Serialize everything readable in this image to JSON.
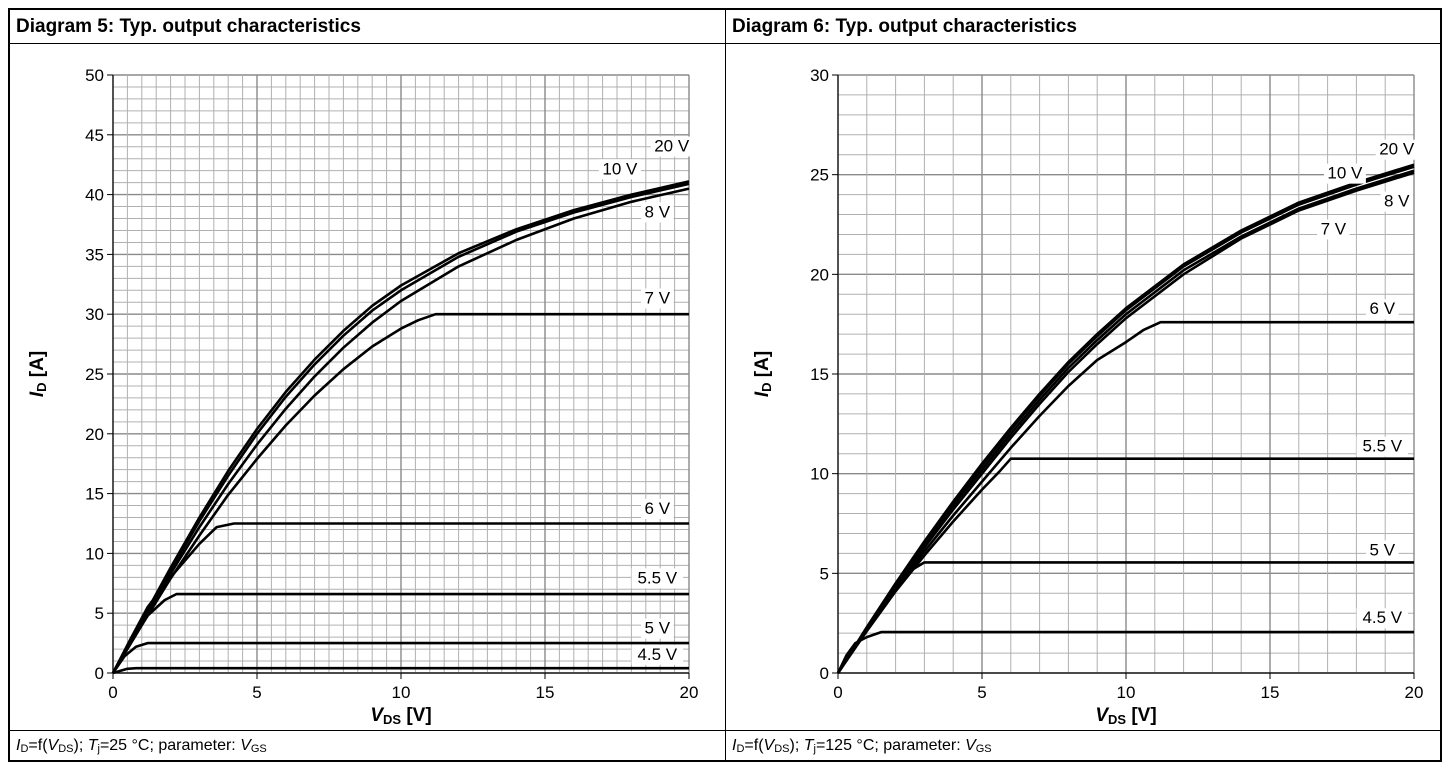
{
  "panels": [
    {
      "title": "Diagram 5: Typ. output characteristics",
      "caption": {
        "lhs": "I",
        "lhs_sub": "D",
        "eq": "=f(",
        "arg": "V",
        "arg_sub": "DS",
        "close": "); ",
        "temp_sym": "T",
        "temp_sub": "j",
        "temp_val": "=25 °C; parameter: ",
        "param": "V",
        "param_sub": "GS"
      }
    },
    {
      "title": "Diagram 6: Typ. output characteristics",
      "caption": {
        "lhs": "I",
        "lhs_sub": "D",
        "eq": "=f(",
        "arg": "V",
        "arg_sub": "DS",
        "close": "); ",
        "temp_sym": "T",
        "temp_sub": "j",
        "temp_val": "=125 °C; parameter: ",
        "param": "V",
        "param_sub": "GS"
      }
    }
  ],
  "chart_data": [
    {
      "type": "line",
      "title": "Diagram 5: Typ. output characteristics",
      "xlabel": {
        "sym": "V",
        "sub": "DS",
        "unit": " [V]"
      },
      "ylabel": {
        "sym": "I",
        "sub": "D",
        "unit": " [A]"
      },
      "xlim": [
        0,
        20
      ],
      "ylim": [
        0,
        50
      ],
      "xticks": [
        0,
        5,
        10,
        15,
        20
      ],
      "yticks": [
        0,
        5,
        10,
        15,
        20,
        25,
        30,
        35,
        40,
        45,
        50
      ],
      "grid": true,
      "series": [
        {
          "name": "20 V",
          "points": [
            [
              0,
              0
            ],
            [
              1,
              4.4
            ],
            [
              2,
              8.8
            ],
            [
              3,
              13
            ],
            [
              4,
              16.9
            ],
            [
              5,
              20.4
            ],
            [
              6,
              23.5
            ],
            [
              7,
              26.2
            ],
            [
              8,
              28.6
            ],
            [
              9,
              30.7
            ],
            [
              10,
              32.4
            ],
            [
              12,
              35.1
            ],
            [
              14,
              37.1
            ],
            [
              16,
              38.7
            ],
            [
              18,
              40
            ],
            [
              20,
              41.1
            ]
          ]
        },
        {
          "name": "10 V",
          "points": [
            [
              0,
              0
            ],
            [
              1,
              4.3
            ],
            [
              2,
              8.6
            ],
            [
              3,
              12.7
            ],
            [
              4,
              16.5
            ],
            [
              5,
              20
            ],
            [
              6,
              23.1
            ],
            [
              7,
              25.8
            ],
            [
              8,
              28.2
            ],
            [
              9,
              30.3
            ],
            [
              10,
              32
            ],
            [
              12,
              34.8
            ],
            [
              14,
              36.9
            ],
            [
              16,
              38.5
            ],
            [
              18,
              39.8
            ],
            [
              20,
              40.9
            ]
          ]
        },
        {
          "name": "8 V",
          "points": [
            [
              0,
              0
            ],
            [
              1,
              4.2
            ],
            [
              2,
              8.3
            ],
            [
              3,
              12.2
            ],
            [
              4,
              15.8
            ],
            [
              5,
              19.1
            ],
            [
              6,
              22.1
            ],
            [
              7,
              24.8
            ],
            [
              8,
              27.2
            ],
            [
              9,
              29.3
            ],
            [
              10,
              31.1
            ],
            [
              12,
              34
            ],
            [
              14,
              36.2
            ],
            [
              16,
              38
            ],
            [
              18,
              39.4
            ],
            [
              20,
              40.5
            ]
          ]
        },
        {
          "name": "7 V",
          "points": [
            [
              0,
              0
            ],
            [
              1,
              4
            ],
            [
              2,
              7.9
            ],
            [
              3,
              11.5
            ],
            [
              4,
              14.9
            ],
            [
              5,
              17.9
            ],
            [
              6,
              20.7
            ],
            [
              7,
              23.2
            ],
            [
              8,
              25.4
            ],
            [
              9,
              27.3
            ],
            [
              10,
              28.8
            ],
            [
              10.6,
              29.5
            ],
            [
              11.2,
              30
            ],
            [
              20,
              30
            ]
          ]
        },
        {
          "name": "6 V",
          "points": [
            [
              0,
              0
            ],
            [
              0.6,
              2.8
            ],
            [
              1.2,
              5.5
            ],
            [
              2,
              8
            ],
            [
              3,
              10.8
            ],
            [
              3.6,
              12.2
            ],
            [
              4.2,
              12.5
            ],
            [
              20,
              12.5
            ]
          ]
        },
        {
          "name": "5.5 V",
          "points": [
            [
              0,
              0
            ],
            [
              0.6,
              2.6
            ],
            [
              1.2,
              4.8
            ],
            [
              1.8,
              6.1
            ],
            [
              2.2,
              6.6
            ],
            [
              20,
              6.6
            ]
          ]
        },
        {
          "name": "5 V",
          "points": [
            [
              0,
              0
            ],
            [
              0.4,
              1.4
            ],
            [
              0.8,
              2.2
            ],
            [
              1.2,
              2.5
            ],
            [
              20,
              2.5
            ]
          ]
        },
        {
          "name": "4.5 V",
          "points": [
            [
              0,
              0
            ],
            [
              0.5,
              0.35
            ],
            [
              0.8,
              0.4
            ],
            [
              20,
              0.4
            ]
          ]
        }
      ],
      "labels": [
        {
          "text": "20 V",
          "x": 19.4,
          "y": 43.6
        },
        {
          "text": "10 V",
          "x": 17.6,
          "y": 41.7
        },
        {
          "text": "8 V",
          "x": 18.9,
          "y": 38.1
        },
        {
          "text": "7 V",
          "x": 18.9,
          "y": 30.9
        },
        {
          "text": "6 V",
          "x": 18.9,
          "y": 13.3
        },
        {
          "text": "5.5 V",
          "x": 18.9,
          "y": 7.5
        },
        {
          "text": "5 V",
          "x": 18.9,
          "y": 3.3
        },
        {
          "text": "4.5 V",
          "x": 18.9,
          "y": 1.1
        }
      ]
    },
    {
      "type": "line",
      "title": "Diagram 6: Typ. output characteristics",
      "xlabel": {
        "sym": "V",
        "sub": "DS",
        "unit": " [V]"
      },
      "ylabel": {
        "sym": "I",
        "sub": "D",
        "unit": " [A]"
      },
      "xlim": [
        0,
        20
      ],
      "ylim": [
        0,
        30
      ],
      "xticks": [
        0,
        5,
        10,
        15,
        20
      ],
      "yticks": [
        0,
        5,
        10,
        15,
        20,
        25,
        30
      ],
      "grid": true,
      "series": [
        {
          "name": "20 V",
          "points": [
            [
              0,
              0
            ],
            [
              1,
              2.3
            ],
            [
              2,
              4.5
            ],
            [
              3,
              6.6
            ],
            [
              4,
              8.6
            ],
            [
              5,
              10.5
            ],
            [
              6,
              12.3
            ],
            [
              7,
              14
            ],
            [
              8,
              15.6
            ],
            [
              9,
              17
            ],
            [
              10,
              18.3
            ],
            [
              12,
              20.5
            ],
            [
              14,
              22.2
            ],
            [
              16,
              23.6
            ],
            [
              18,
              24.6
            ],
            [
              20,
              25.5
            ]
          ]
        },
        {
          "name": "10 V",
          "points": [
            [
              0,
              0
            ],
            [
              1,
              2.25
            ],
            [
              2,
              4.4
            ],
            [
              3,
              6.5
            ],
            [
              4,
              8.5
            ],
            [
              5,
              10.4
            ],
            [
              6,
              12.2
            ],
            [
              7,
              13.9
            ],
            [
              8,
              15.5
            ],
            [
              9,
              16.9
            ],
            [
              10,
              18.2
            ],
            [
              12,
              20.4
            ],
            [
              14,
              22.1
            ],
            [
              16,
              23.5
            ],
            [
              18,
              24.5
            ],
            [
              20,
              25.4
            ]
          ]
        },
        {
          "name": "8 V",
          "points": [
            [
              0,
              0
            ],
            [
              1,
              2.2
            ],
            [
              2,
              4.3
            ],
            [
              3,
              6.4
            ],
            [
              4,
              8.4
            ],
            [
              5,
              10.2
            ],
            [
              6,
              12
            ],
            [
              7,
              13.7
            ],
            [
              8,
              15.3
            ],
            [
              9,
              16.7
            ],
            [
              10,
              18
            ],
            [
              12,
              20.2
            ],
            [
              14,
              21.9
            ],
            [
              16,
              23.3
            ],
            [
              18,
              24.3
            ],
            [
              20,
              25.2
            ]
          ]
        },
        {
          "name": "7 V",
          "points": [
            [
              0,
              0
            ],
            [
              1,
              2.2
            ],
            [
              2,
              4.3
            ],
            [
              3,
              6.3
            ],
            [
              4,
              8.2
            ],
            [
              5,
              10
            ],
            [
              6,
              11.8
            ],
            [
              7,
              13.5
            ],
            [
              8,
              15.1
            ],
            [
              9,
              16.5
            ],
            [
              10,
              17.8
            ],
            [
              12,
              20
            ],
            [
              14,
              21.8
            ],
            [
              16,
              23.2
            ],
            [
              18,
              24.2
            ],
            [
              20,
              25.1
            ]
          ]
        },
        {
          "name": "6 V",
          "points": [
            [
              0,
              0
            ],
            [
              1,
              2.2
            ],
            [
              2,
              4.2
            ],
            [
              3,
              6.1
            ],
            [
              4,
              7.9
            ],
            [
              5,
              9.6
            ],
            [
              6,
              11.3
            ],
            [
              7,
              12.9
            ],
            [
              8,
              14.4
            ],
            [
              9,
              15.7
            ],
            [
              10,
              16.6
            ],
            [
              10.6,
              17.2
            ],
            [
              11.2,
              17.6
            ],
            [
              20,
              17.6
            ]
          ]
        },
        {
          "name": "5.5 V",
          "points": [
            [
              0,
              0
            ],
            [
              1,
              2.1
            ],
            [
              2,
              4.1
            ],
            [
              3,
              5.9
            ],
            [
              4,
              7.6
            ],
            [
              5,
              9.2
            ],
            [
              5.6,
              10.1
            ],
            [
              6,
              10.75
            ],
            [
              20,
              10.75
            ]
          ]
        },
        {
          "name": "5 V",
          "points": [
            [
              0,
              0
            ],
            [
              0.6,
              1.3
            ],
            [
              1.2,
              2.6
            ],
            [
              2,
              4.4
            ],
            [
              2.6,
              5.2
            ],
            [
              3,
              5.55
            ],
            [
              20,
              5.55
            ]
          ]
        },
        {
          "name": "4.5 V",
          "points": [
            [
              0,
              0
            ],
            [
              0.3,
              0.9
            ],
            [
              0.6,
              1.5
            ],
            [
              1,
              1.8
            ],
            [
              1.5,
              2.05
            ],
            [
              20,
              2.05
            ]
          ]
        }
      ],
      "labels": [
        {
          "text": "20 V",
          "x": 19.4,
          "y": 26.0
        },
        {
          "text": "10 V",
          "x": 17.6,
          "y": 24.8
        },
        {
          "text": "8 V",
          "x": 19.4,
          "y": 23.4
        },
        {
          "text": "7 V",
          "x": 17.2,
          "y": 22.0
        },
        {
          "text": "6 V",
          "x": 18.9,
          "y": 18.0
        },
        {
          "text": "5.5 V",
          "x": 18.9,
          "y": 11.1
        },
        {
          "text": "5 V",
          "x": 18.9,
          "y": 5.9
        },
        {
          "text": "4.5 V",
          "x": 18.9,
          "y": 2.5
        }
      ]
    }
  ]
}
